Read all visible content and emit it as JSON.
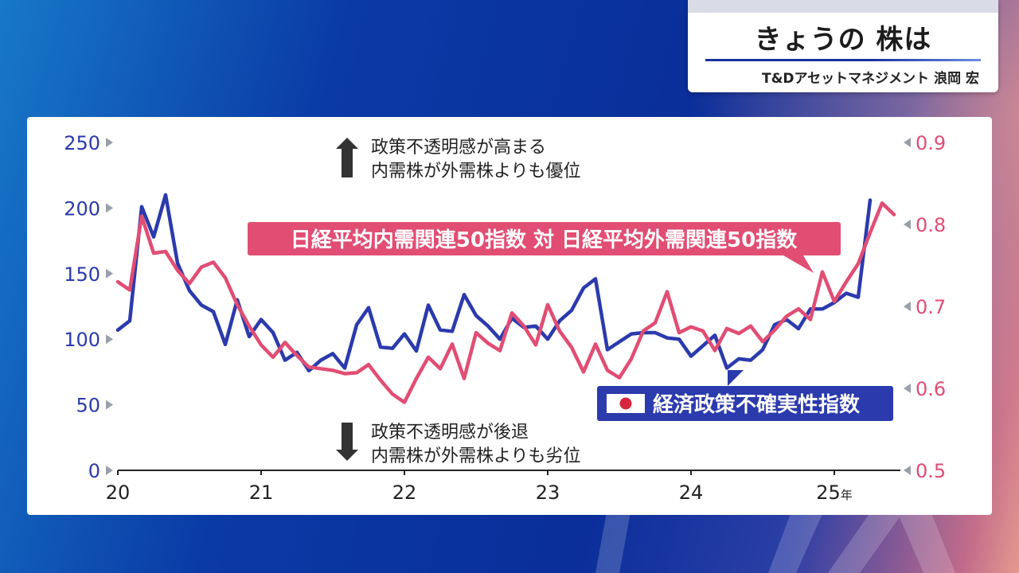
{
  "header": {
    "title": "きょうの 株は",
    "subtitle": "T&Dアセットマネジメント 浪岡 宏"
  },
  "annotations": {
    "up_line1": "政策不透明感が高まる",
    "up_line2": "内需株が外需株よりも優位",
    "down_line1": "政策不透明感が後退",
    "down_line2": "内需株が外需株よりも劣位"
  },
  "chart_data": {
    "type": "line",
    "xlabel": "",
    "x_ticks": [
      "20",
      "21",
      "22",
      "23",
      "24",
      "25年"
    ],
    "x_range": [
      2020.0,
      2025.45
    ],
    "y_left": {
      "label": "",
      "ticks": [
        "250",
        "200",
        "150",
        "100",
        "50",
        "0"
      ],
      "range": [
        0,
        250
      ],
      "color": "#2b3aad"
    },
    "y_right": {
      "label": "",
      "ticks": [
        "0.9",
        "0.8",
        "0.7",
        "0.6",
        "0.5"
      ],
      "range": [
        0.5,
        0.9
      ],
      "color": "#e24d73"
    },
    "series": [
      {
        "name": "経済政策不確実性指数",
        "axis": "left",
        "color": "#2b3aad",
        "x_step_months": 1,
        "x_start": 2020.0,
        "values": [
          107,
          114,
          201,
          178,
          210,
          158,
          137,
          126,
          121,
          96,
          130,
          102,
          115,
          105,
          84,
          90,
          76,
          84,
          89,
          78,
          111,
          124,
          94,
          93,
          104,
          91,
          126,
          107,
          106,
          134,
          118,
          110,
          100,
          116,
          109,
          110,
          100,
          114,
          122,
          139,
          146,
          92,
          98,
          104,
          105,
          105,
          101,
          100,
          87,
          95,
          103,
          78,
          85,
          84,
          92,
          111,
          115,
          108,
          123,
          123,
          128,
          135,
          132,
          206
        ]
      },
      {
        "name": "日経平均内需関連50指数 対 日経平均外需関連50指数",
        "axis": "right",
        "color": "#e24d73",
        "x_step_months": 1,
        "x_start": 2020.0,
        "values": [
          0.73,
          0.72,
          0.81,
          0.765,
          0.767,
          0.744,
          0.728,
          0.748,
          0.754,
          0.735,
          0.702,
          0.676,
          0.653,
          0.638,
          0.656,
          0.64,
          0.626,
          0.624,
          0.622,
          0.618,
          0.619,
          0.629,
          0.61,
          0.593,
          0.583,
          0.612,
          0.638,
          0.624,
          0.654,
          0.612,
          0.668,
          0.655,
          0.646,
          0.692,
          0.676,
          0.653,
          0.702,
          0.67,
          0.65,
          0.62,
          0.654,
          0.622,
          0.613,
          0.636,
          0.67,
          0.68,
          0.718,
          0.668,
          0.675,
          0.67,
          0.646,
          0.673,
          0.667,
          0.676,
          0.657,
          0.671,
          0.688,
          0.697,
          0.684,
          0.742,
          0.706,
          0.73,
          0.752,
          0.79,
          0.826,
          0.812
        ]
      }
    ],
    "series_labels": {
      "pink": "日経平均内需関連50指数 対 日経平均外需関連50指数",
      "blue": "経済政策不確実性指数"
    },
    "legend_icon": "japan-flag-icon",
    "grid": false
  }
}
